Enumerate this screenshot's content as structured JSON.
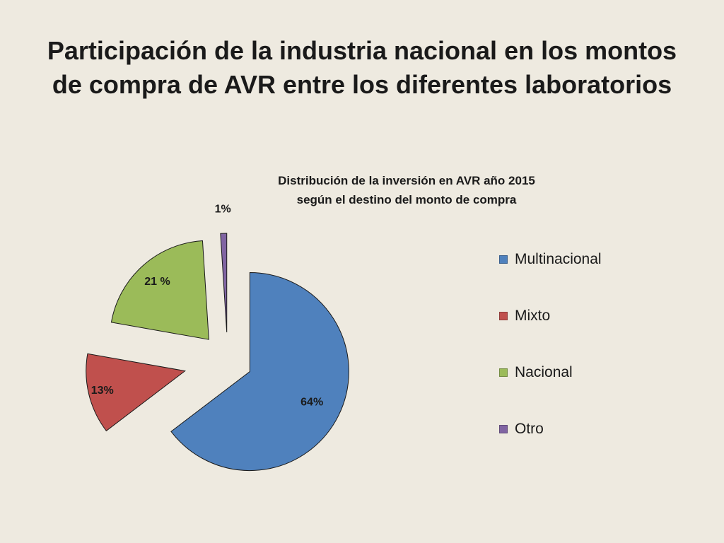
{
  "slide": {
    "title_line1": "Participación de la industria nacional en los montos",
    "title_line2": "de compra de AVR entre los diferentes laboratorios"
  },
  "chart_data": {
    "type": "pie",
    "title_line1": "Distribución de la inversión en AVR año 2015",
    "title_line2": "según el destino del monto de compra",
    "categories": [
      "Multinacional",
      "Mixto",
      "Nacional",
      "Otro"
    ],
    "values": [
      64,
      13,
      21,
      1
    ],
    "data_labels": [
      "64%",
      "13%",
      "21 %",
      "1%"
    ],
    "colors": [
      "#4f81bd",
      "#c0504d",
      "#9bbb59",
      "#8064a2"
    ],
    "exploded": true,
    "legend_position": "right"
  }
}
